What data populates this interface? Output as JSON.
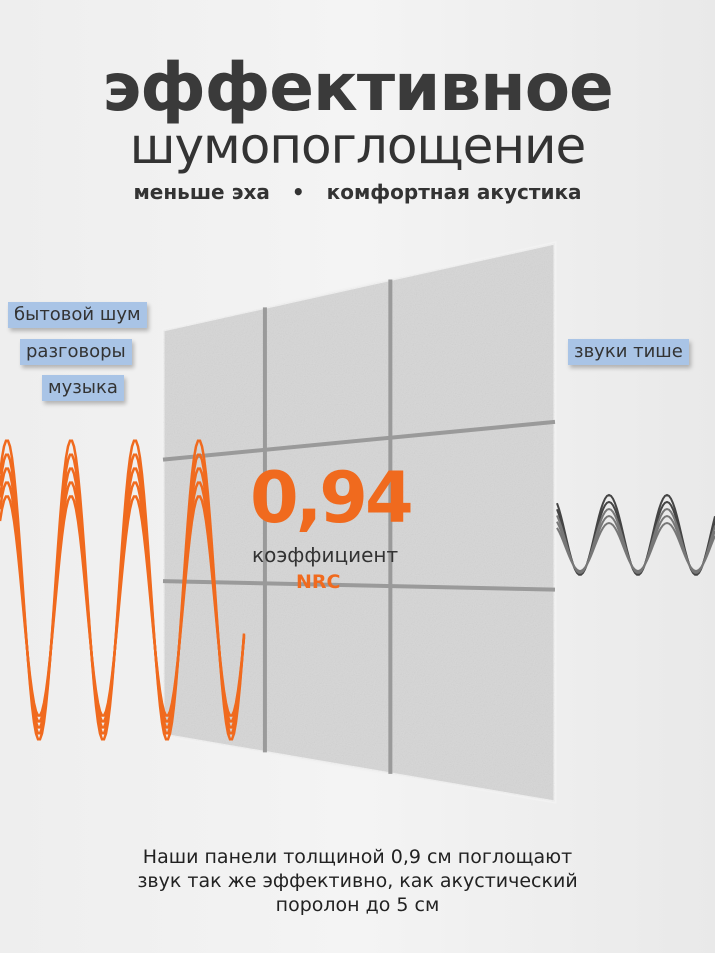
{
  "headline": {
    "line1": "эффективное",
    "line2": "шумопоглощение"
  },
  "subtitle": {
    "left": "меньше эха",
    "separator": "•",
    "right": "комфортная акустика"
  },
  "tags_left": [
    "бытовой шум",
    "разговоры",
    "музыка"
  ],
  "tag_right": "звуки тише",
  "nrc": {
    "value": "0,94",
    "label": "коэффициент",
    "unit": "NRC"
  },
  "description": [
    "Наши панели толщиной 0,9 см поглощают",
    "звук так же эффективно, как акустический",
    "поролон до 5 см"
  ],
  "colors": {
    "accent": "#f06a1e",
    "tag_bg": "#a9c4e6",
    "panel": "#d4d4d4",
    "wave_out": "#555555"
  }
}
